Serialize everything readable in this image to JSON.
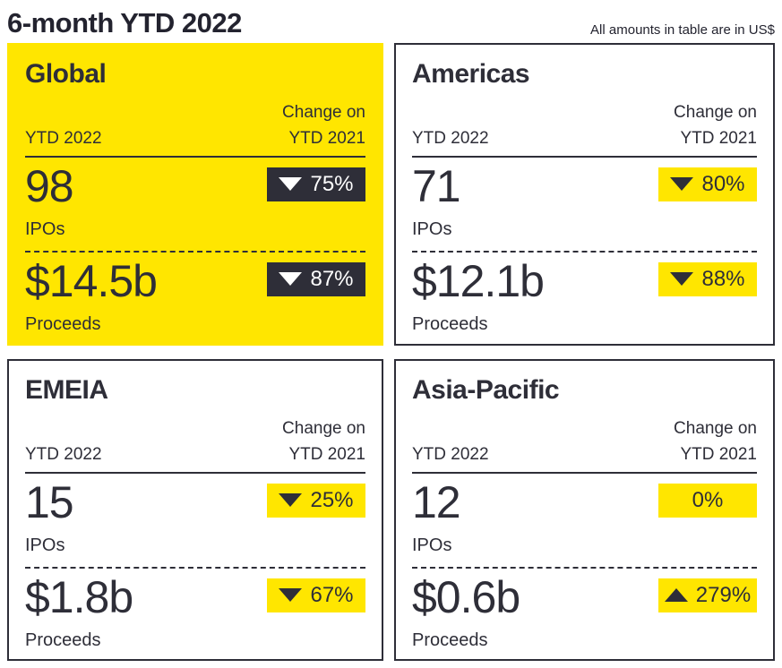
{
  "page": {
    "title": "6-month YTD 2022",
    "note": "All amounts in table are in US$"
  },
  "colors": {
    "accent_yellow": "#FFE600",
    "dark_charcoal": "#2E2E38",
    "background": "#FFFFFF"
  },
  "labels": {
    "col_left": "YTD 2022",
    "col_right_line1": "Change on",
    "col_right_line2": "YTD 2021",
    "ipos": "IPOs",
    "proceeds": "Proceeds"
  },
  "cards": [
    {
      "region": "Global",
      "highlight": true,
      "ipos": {
        "value": "98",
        "change": "75%",
        "direction": "down"
      },
      "proceeds": {
        "value": "$14.5b",
        "change": "87%",
        "direction": "down"
      }
    },
    {
      "region": "Americas",
      "highlight": false,
      "ipos": {
        "value": "71",
        "change": "80%",
        "direction": "down"
      },
      "proceeds": {
        "value": "$12.1b",
        "change": "88%",
        "direction": "down"
      }
    },
    {
      "region": "EMEIA",
      "highlight": false,
      "ipos": {
        "value": "15",
        "change": "25%",
        "direction": "down"
      },
      "proceeds": {
        "value": "$1.8b",
        "change": "67%",
        "direction": "down"
      }
    },
    {
      "region": "Asia-Pacific",
      "highlight": false,
      "ipos": {
        "value": "12",
        "change": "0%",
        "direction": "none"
      },
      "proceeds": {
        "value": "$0.6b",
        "change": "279%",
        "direction": "up"
      }
    }
  ],
  "chart_data": {
    "type": "table",
    "title": "6-month YTD 2022",
    "note": "All amounts in table are in US$",
    "columns": [
      "Region",
      "IPOs YTD 2022",
      "IPOs change on YTD 2021",
      "Proceeds YTD 2022",
      "Proceeds change on YTD 2021"
    ],
    "rows": [
      [
        "Global",
        98,
        "-75%",
        "$14.5b",
        "-87%"
      ],
      [
        "Americas",
        71,
        "-80%",
        "$12.1b",
        "-88%"
      ],
      [
        "EMEIA",
        15,
        "-25%",
        "$1.8b",
        "-67%"
      ],
      [
        "Asia-Pacific",
        12,
        "0%",
        "$0.6b",
        "+279%"
      ]
    ]
  }
}
